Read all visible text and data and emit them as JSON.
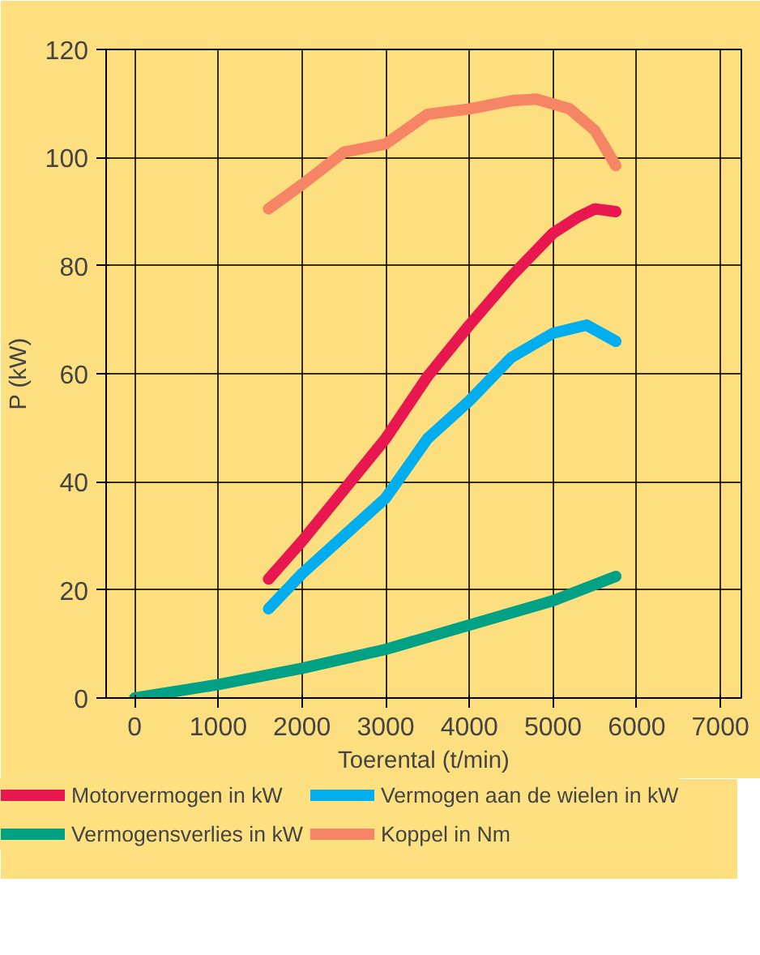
{
  "chart_data": {
    "type": "line",
    "xlabel": "Toerental (t/min)",
    "ylabel": "P (kW)",
    "xlim": [
      -340,
      7250
    ],
    "ylim": [
      0,
      120
    ],
    "xticks": [
      0,
      1000,
      2000,
      3000,
      4000,
      5000,
      6000,
      7000
    ],
    "yticks": [
      0,
      20,
      40,
      60,
      80,
      100,
      120
    ],
    "grid": true,
    "legend": "bottom",
    "line_style": "solid",
    "series": [
      {
        "name": "Motorvermogen in kW",
        "color": "#e8174f",
        "x": [
          1600,
          2000,
          2500,
          3000,
          3500,
          4000,
          4500,
          5000,
          5300,
          5500,
          5750
        ],
        "values": [
          22,
          29,
          38.5,
          48,
          59.5,
          69,
          78,
          86,
          89,
          90.5,
          90
        ]
      },
      {
        "name": "Vermogen aan de wielen in kW",
        "color": "#00aeef",
        "x": [
          1600,
          2000,
          2500,
          3000,
          3500,
          4000,
          4500,
          5000,
          5400,
          5750
        ],
        "values": [
          16.5,
          23,
          30,
          37,
          48,
          55,
          63,
          67.5,
          69,
          66
        ]
      },
      {
        "name": "Vermogensverlies in kW",
        "color": "#00a184",
        "x": [
          0,
          1000,
          2000,
          3000,
          4000,
          5000,
          5750
        ],
        "values": [
          0,
          2.5,
          5.5,
          9,
          13.5,
          18,
          22.5
        ]
      },
      {
        "name": "Koppel in Nm",
        "color": "#f68565",
        "x": [
          1600,
          2000,
          2500,
          3000,
          3500,
          4000,
          4500,
          4800,
          5200,
          5500,
          5750
        ],
        "values": [
          90.5,
          95,
          101,
          102.5,
          108,
          109,
          110.5,
          110.8,
          109,
          105,
          98.5
        ]
      }
    ]
  }
}
